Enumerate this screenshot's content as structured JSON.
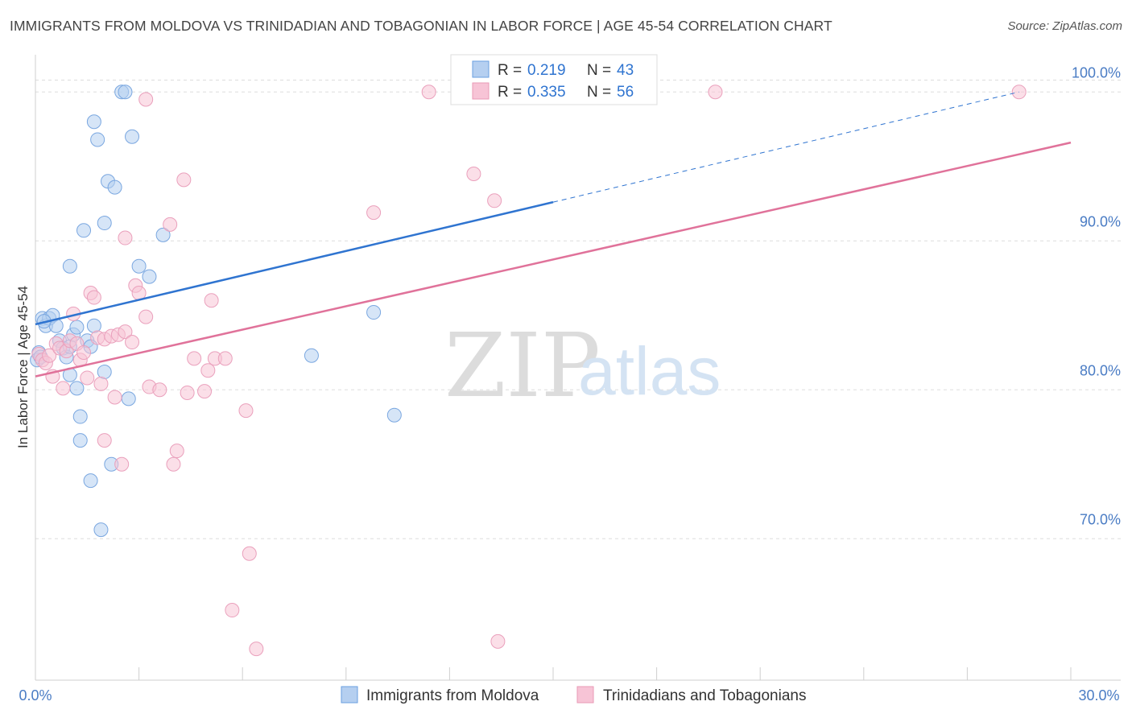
{
  "title": "IMMIGRANTS FROM MOLDOVA VS TRINIDADIAN AND TOBAGONIAN IN LABOR FORCE | AGE 45-54 CORRELATION CHART",
  "source": "Source: ZipAtlas.com",
  "watermark": {
    "zip": "ZIP",
    "atlas": "atlas"
  },
  "colors": {
    "blue": "#2f74d0",
    "blue_fill": "#b5cff0",
    "pink": "#e0729a",
    "pink_fill": "#f7c4d6",
    "tick_label": "#4a7cc4",
    "grid": "#dddddd"
  },
  "chart_data": {
    "type": "scatter",
    "ylabel": "In Labor Force | Age 45-54",
    "xlim": [
      0,
      30
    ],
    "ylim": [
      60.5,
      102.5
    ],
    "x_tick_labels": {
      "min": "0.0%",
      "max": "30.0%"
    },
    "y_ticks": [
      {
        "value": 70,
        "label": "70.0%"
      },
      {
        "value": 80,
        "label": "80.0%"
      },
      {
        "value": 90,
        "label": "90.0%"
      },
      {
        "value": 100,
        "label": "100.0%"
      }
    ],
    "grid": true,
    "legend_position": "top-center",
    "stats_legend": [
      {
        "r_label": "R =",
        "r_value": "0.219",
        "n_label": "N =",
        "n_value": "43"
      },
      {
        "r_label": "R =",
        "r_value": "0.335",
        "n_label": "N =",
        "n_value": "56"
      }
    ],
    "series": [
      {
        "name": "Immigrants from Moldova",
        "color": "#2f74d0",
        "trend": {
          "x": [
            0,
            15
          ],
          "y": [
            84.4,
            92.6
          ],
          "dashed_extension_to": [
            28.5,
            100.0
          ]
        },
        "points": [
          [
            0.1,
            82.5
          ],
          [
            0.2,
            84.8
          ],
          [
            0.3,
            84.3
          ],
          [
            0.4,
            84.8
          ],
          [
            0.5,
            85.0
          ],
          [
            0.6,
            84.3
          ],
          [
            0.7,
            83.3
          ],
          [
            0.8,
            82.8
          ],
          [
            0.9,
            82.2
          ],
          [
            1.0,
            82.9
          ],
          [
            1.0,
            88.3
          ],
          [
            1.0,
            81.0
          ],
          [
            1.1,
            83.7
          ],
          [
            1.2,
            84.2
          ],
          [
            1.2,
            80.1
          ],
          [
            1.3,
            78.2
          ],
          [
            1.3,
            76.6
          ],
          [
            1.4,
            90.7
          ],
          [
            1.5,
            83.3
          ],
          [
            1.6,
            73.9
          ],
          [
            1.6,
            82.9
          ],
          [
            1.7,
            84.3
          ],
          [
            1.7,
            98.0
          ],
          [
            1.8,
            96.8
          ],
          [
            1.9,
            70.6
          ],
          [
            2.0,
            81.2
          ],
          [
            2.0,
            91.2
          ],
          [
            2.1,
            94.0
          ],
          [
            2.2,
            75.0
          ],
          [
            2.3,
            93.6
          ],
          [
            2.5,
            100.0
          ],
          [
            2.6,
            100.0
          ],
          [
            2.7,
            79.4
          ],
          [
            2.8,
            97.0
          ],
          [
            3.0,
            88.3
          ],
          [
            3.3,
            87.6
          ],
          [
            3.7,
            90.4
          ],
          [
            8.0,
            82.3
          ],
          [
            9.8,
            85.2
          ],
          [
            10.4,
            78.3
          ],
          [
            0.05,
            82.0
          ],
          [
            0.15,
            82.2
          ],
          [
            0.25,
            84.6
          ]
        ]
      },
      {
        "name": "Trinidadians and Tobagonians",
        "color": "#e0729a",
        "trend": {
          "x": [
            0,
            30
          ],
          "y": [
            80.9,
            96.6
          ]
        },
        "points": [
          [
            0.1,
            82.4
          ],
          [
            0.2,
            82.0
          ],
          [
            0.3,
            81.8
          ],
          [
            0.4,
            82.3
          ],
          [
            0.5,
            80.9
          ],
          [
            0.6,
            83.1
          ],
          [
            0.7,
            82.8
          ],
          [
            0.8,
            80.1
          ],
          [
            0.9,
            82.6
          ],
          [
            1.0,
            83.3
          ],
          [
            1.1,
            85.1
          ],
          [
            1.2,
            83.1
          ],
          [
            1.3,
            82.0
          ],
          [
            1.4,
            82.5
          ],
          [
            1.5,
            80.8
          ],
          [
            1.6,
            86.5
          ],
          [
            1.7,
            86.2
          ],
          [
            1.8,
            83.5
          ],
          [
            1.9,
            80.4
          ],
          [
            2.0,
            83.4
          ],
          [
            2.0,
            76.6
          ],
          [
            2.2,
            83.6
          ],
          [
            2.3,
            79.5
          ],
          [
            2.4,
            83.7
          ],
          [
            2.5,
            75.0
          ],
          [
            2.6,
            83.9
          ],
          [
            2.6,
            90.2
          ],
          [
            2.8,
            83.2
          ],
          [
            2.9,
            87.0
          ],
          [
            3.0,
            86.5
          ],
          [
            3.2,
            99.5
          ],
          [
            3.2,
            84.9
          ],
          [
            3.3,
            80.2
          ],
          [
            3.6,
            80.0
          ],
          [
            3.9,
            91.1
          ],
          [
            4.0,
            75.0
          ],
          [
            4.1,
            75.9
          ],
          [
            4.3,
            94.1
          ],
          [
            4.4,
            79.8
          ],
          [
            4.6,
            82.1
          ],
          [
            4.9,
            79.9
          ],
          [
            5.0,
            81.3
          ],
          [
            5.1,
            86.0
          ],
          [
            5.2,
            82.1
          ],
          [
            5.5,
            82.1
          ],
          [
            5.7,
            65.2
          ],
          [
            6.1,
            78.6
          ],
          [
            6.2,
            69.0
          ],
          [
            6.4,
            62.6
          ],
          [
            9.8,
            91.9
          ],
          [
            11.4,
            100.0
          ],
          [
            12.7,
            94.5
          ],
          [
            13.3,
            92.7
          ],
          [
            13.4,
            63.1
          ],
          [
            19.7,
            100.0
          ],
          [
            28.5,
            100.0
          ]
        ]
      }
    ]
  }
}
